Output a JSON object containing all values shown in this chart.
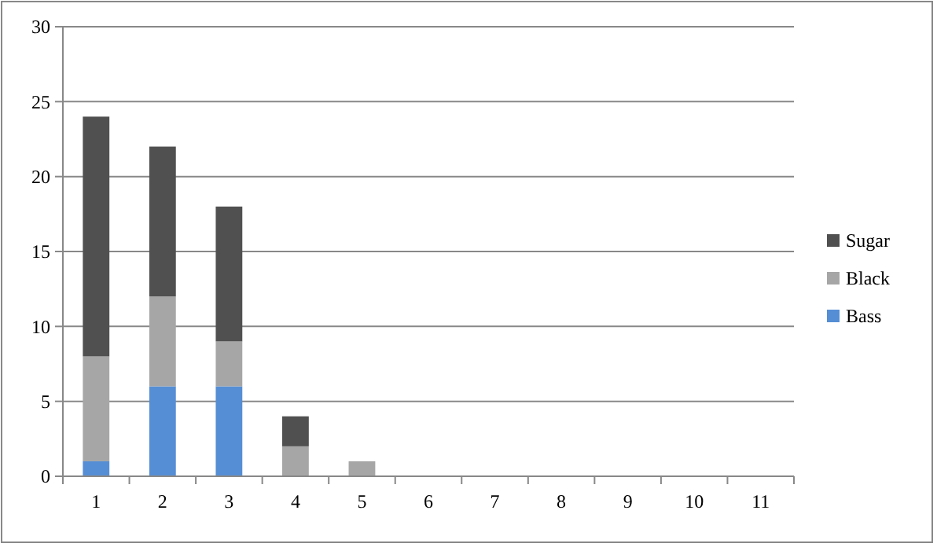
{
  "chart_data": {
    "type": "bar",
    "stacked": true,
    "categories": [
      "1",
      "2",
      "3",
      "4",
      "5",
      "6",
      "7",
      "8",
      "9",
      "10",
      "11"
    ],
    "series": [
      {
        "name": "Bass",
        "color": "#558ed5",
        "values": [
          1,
          6,
          6,
          0,
          0,
          0,
          0,
          0,
          0,
          0,
          0
        ]
      },
      {
        "name": "Black",
        "color": "#a6a6a6",
        "values": [
          7,
          6,
          3,
          2,
          1,
          0,
          0,
          0,
          0,
          0,
          0
        ]
      },
      {
        "name": "Sugar",
        "color": "#505050",
        "values": [
          16,
          10,
          9,
          2,
          0,
          0,
          0,
          0,
          0,
          0,
          0
        ]
      }
    ],
    "ylim": [
      0,
      30
    ],
    "yticks": [
      0,
      5,
      10,
      15,
      20,
      25,
      30
    ],
    "grid": "y",
    "legend": "right"
  }
}
